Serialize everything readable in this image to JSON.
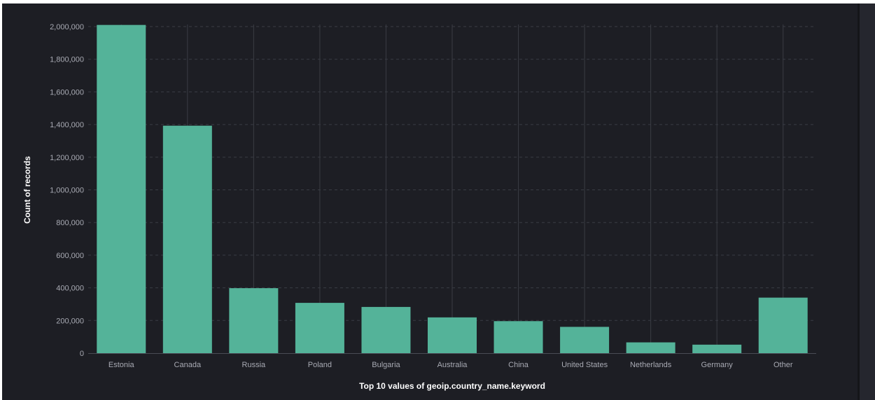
{
  "chart_data": {
    "type": "bar",
    "title": "",
    "xlabel": "Top 10 values of geoip.country_name.keyword",
    "ylabel": "Count of records",
    "categories": [
      "Estonia",
      "Canada",
      "Russia",
      "Poland",
      "Bulgaria",
      "Australia",
      "China",
      "United States",
      "Netherlands",
      "Germany",
      "Other"
    ],
    "values": [
      2010000,
      1393000,
      398000,
      308000,
      283000,
      219000,
      196000,
      161000,
      66000,
      52000,
      340000
    ],
    "ylim": [
      0,
      2000000
    ],
    "yticks": [
      0,
      200000,
      400000,
      600000,
      800000,
      1000000,
      1200000,
      1400000,
      1600000,
      1800000,
      2000000
    ],
    "ytick_labels": [
      "0",
      "200,000",
      "400,000",
      "600,000",
      "800,000",
      "1,000,000",
      "1,200,000",
      "1,400,000",
      "1,600,000",
      "1,800,000",
      "2,000,000"
    ],
    "grid": true,
    "legend": "none",
    "colors": {
      "bar": "#54b399",
      "background": "#1d1e24",
      "grid": "#3a3c44",
      "tick_text": "#a8aab3",
      "title_text": "#ffffff"
    }
  }
}
